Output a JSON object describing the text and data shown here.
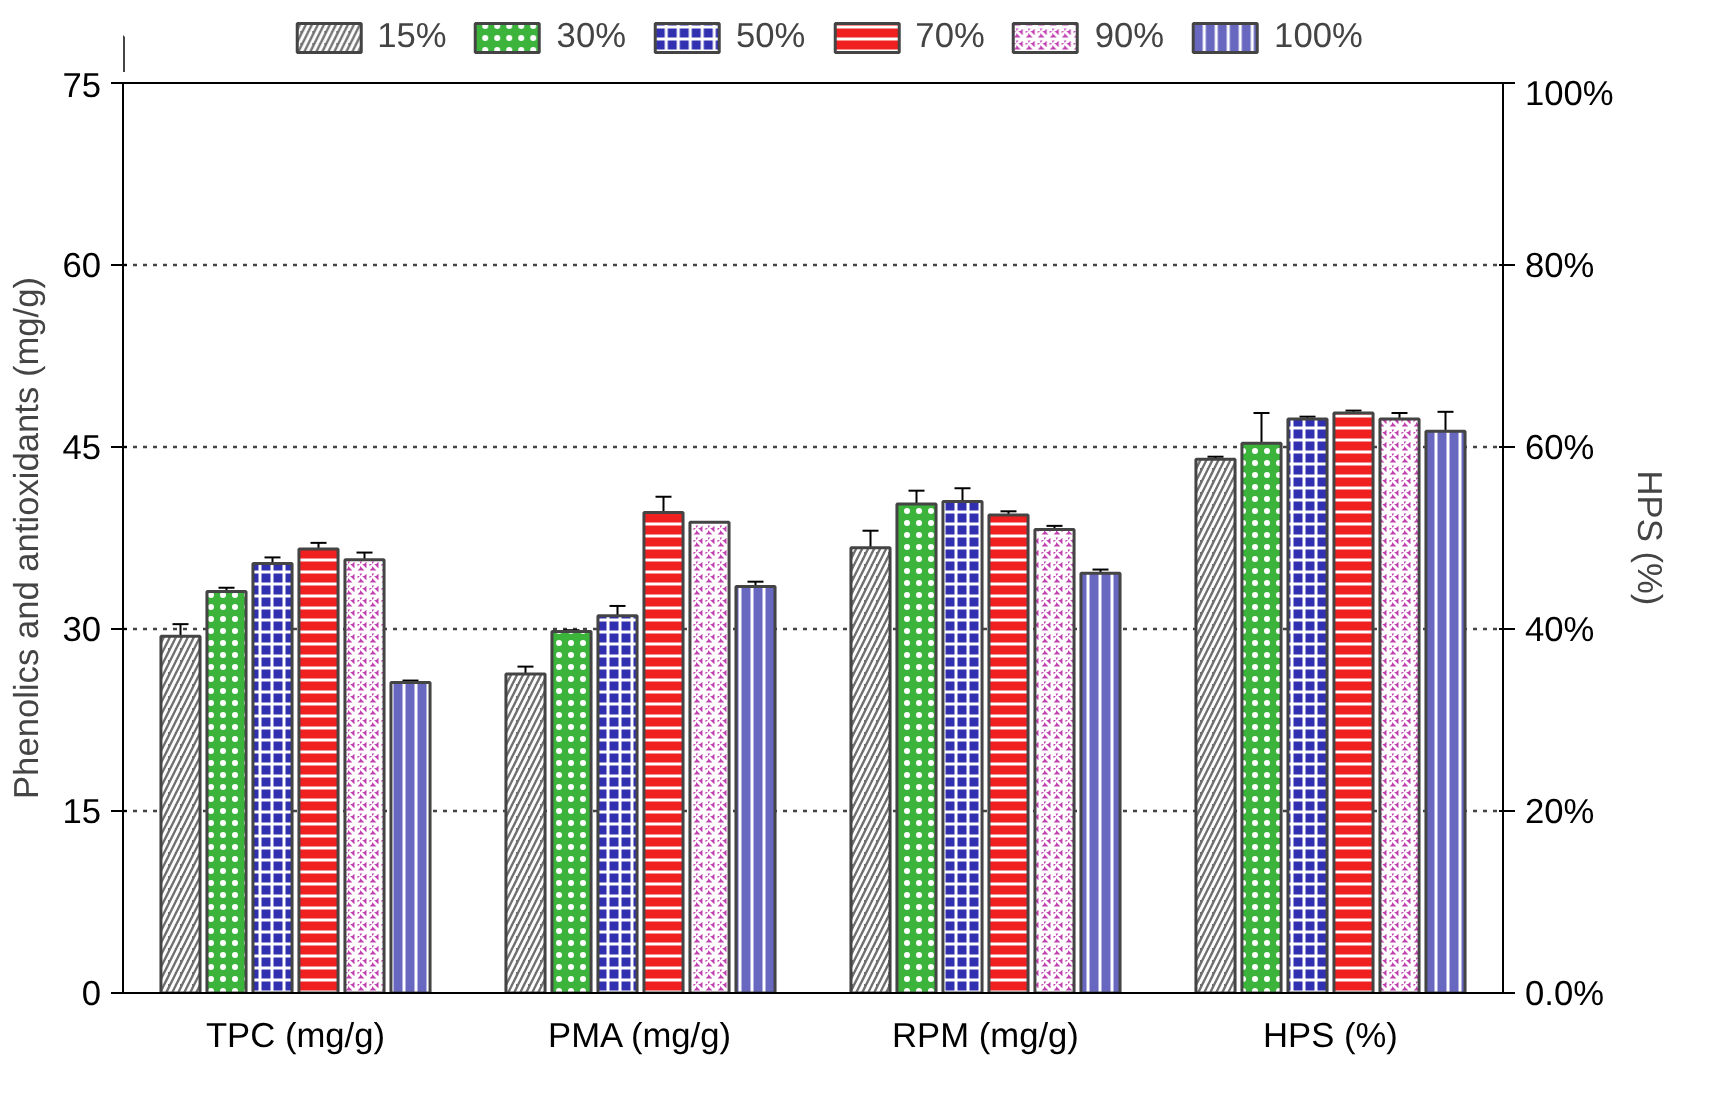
{
  "chart_data": {
    "type": "bar",
    "categories": [
      "TPC (mg/g)",
      "PMA (mg/g)",
      "RPM (mg/g)",
      "HPS (%)"
    ],
    "ylabel": "Phenolics and antioxidants (mg/g)",
    "y2label": "HPS (%)",
    "ylim": [
      0,
      75
    ],
    "yticks": [
      0,
      15,
      30,
      45,
      60,
      75
    ],
    "y2lim": [
      0,
      100
    ],
    "y2ticks": [
      {
        "value": 0,
        "label": "0.0%"
      },
      {
        "value": 20,
        "label": "20%"
      },
      {
        "value": 40,
        "label": "40%"
      },
      {
        "value": 60,
        "label": "60%"
      },
      {
        "value": 80,
        "label": "80%"
      },
      {
        "value": 100,
        "label": "100%"
      }
    ],
    "grid": "y",
    "legend": "top",
    "series": [
      {
        "name": "15%",
        "color": "#707070",
        "values": [
          29.4,
          26.3,
          36.7,
          44.0
        ],
        "errors": [
          1.0,
          0.6,
          1.4,
          0.2
        ]
      },
      {
        "name": "30%",
        "color": "#3cb43c",
        "values": [
          33.1,
          29.8,
          40.3,
          45.3
        ],
        "errors": [
          0.3,
          0.1,
          1.1,
          2.5
        ]
      },
      {
        "name": "50%",
        "color": "#3030b0",
        "values": [
          35.4,
          31.1,
          40.5,
          47.3
        ],
        "errors": [
          0.5,
          0.8,
          1.1,
          0.2
        ]
      },
      {
        "name": "70%",
        "color": "#f02020",
        "values": [
          36.6,
          39.6,
          39.4,
          47.8
        ],
        "errors": [
          0.5,
          1.3,
          0.3,
          0.2
        ]
      },
      {
        "name": "90%",
        "color": "#c040b0",
        "values": [
          35.7,
          38.8,
          38.2,
          47.3
        ],
        "errors": [
          0.6,
          0.0,
          0.3,
          0.5
        ]
      },
      {
        "name": "100%",
        "color": "#6868c0",
        "values": [
          25.6,
          33.5,
          34.6,
          46.3
        ],
        "errors": [
          0.15,
          0.4,
          0.3,
          1.6
        ]
      }
    ]
  }
}
